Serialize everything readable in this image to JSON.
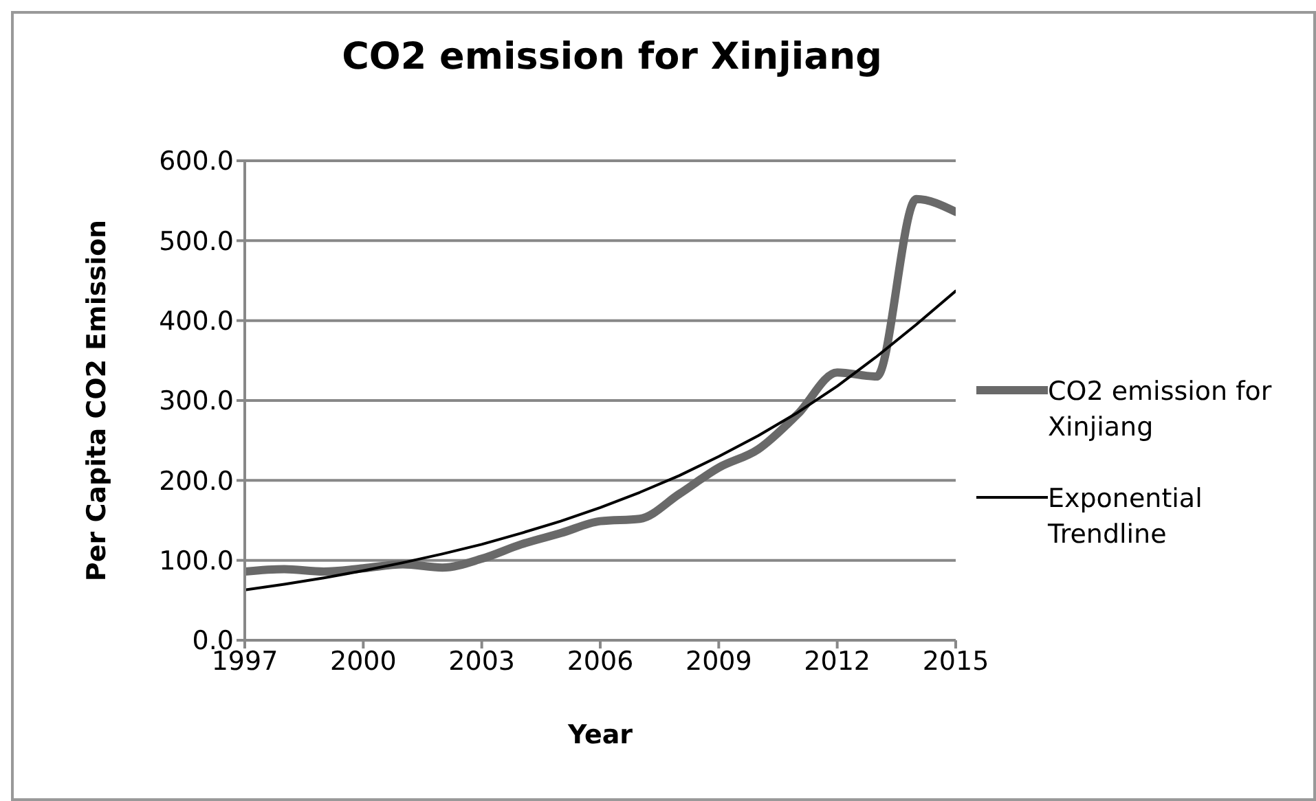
{
  "chart_data": {
    "type": "line",
    "title": "CO2 emission for Xinjiang",
    "xlabel": "Year",
    "ylabel": "Per Capita CO2 Emission",
    "x": [
      1997,
      1998,
      1999,
      2000,
      2001,
      2002,
      2003,
      2004,
      2005,
      2006,
      2007,
      2008,
      2009,
      2010,
      2011,
      2012,
      2013,
      2014,
      2015
    ],
    "series": [
      {
        "name": "CO2 emission for Xinjiang",
        "color": "#696969",
        "values": [
          86,
          89,
          86,
          90,
          95,
          91,
          102,
          120,
          134,
          149,
          152,
          183,
          216,
          239,
          283,
          335,
          330,
          552,
          536
        ]
      },
      {
        "name": "Exponential Trendline",
        "color": "#000000",
        "values": [
          63,
          70,
          78,
          87,
          97,
          108,
          120,
          134,
          149,
          166,
          185,
          206,
          230,
          256,
          285,
          318,
          355,
          395,
          437
        ]
      }
    ],
    "xlim": [
      1997,
      2015
    ],
    "xticks": [
      1997,
      2000,
      2003,
      2006,
      2009,
      2012,
      2015
    ],
    "ylim": [
      0,
      600
    ],
    "yticks": [
      {
        "value": 0,
        "label": "0.0"
      },
      {
        "value": 100,
        "label": "100.0"
      },
      {
        "value": 200,
        "label": "200.0"
      },
      {
        "value": 300,
        "label": "300.0"
      },
      {
        "value": 400,
        "label": "400.0"
      },
      {
        "value": 500,
        "label": "500.0"
      },
      {
        "value": 600,
        "label": "600.0"
      }
    ],
    "grid": "y",
    "legend": "right",
    "marker": "none",
    "line_style": "solid"
  }
}
